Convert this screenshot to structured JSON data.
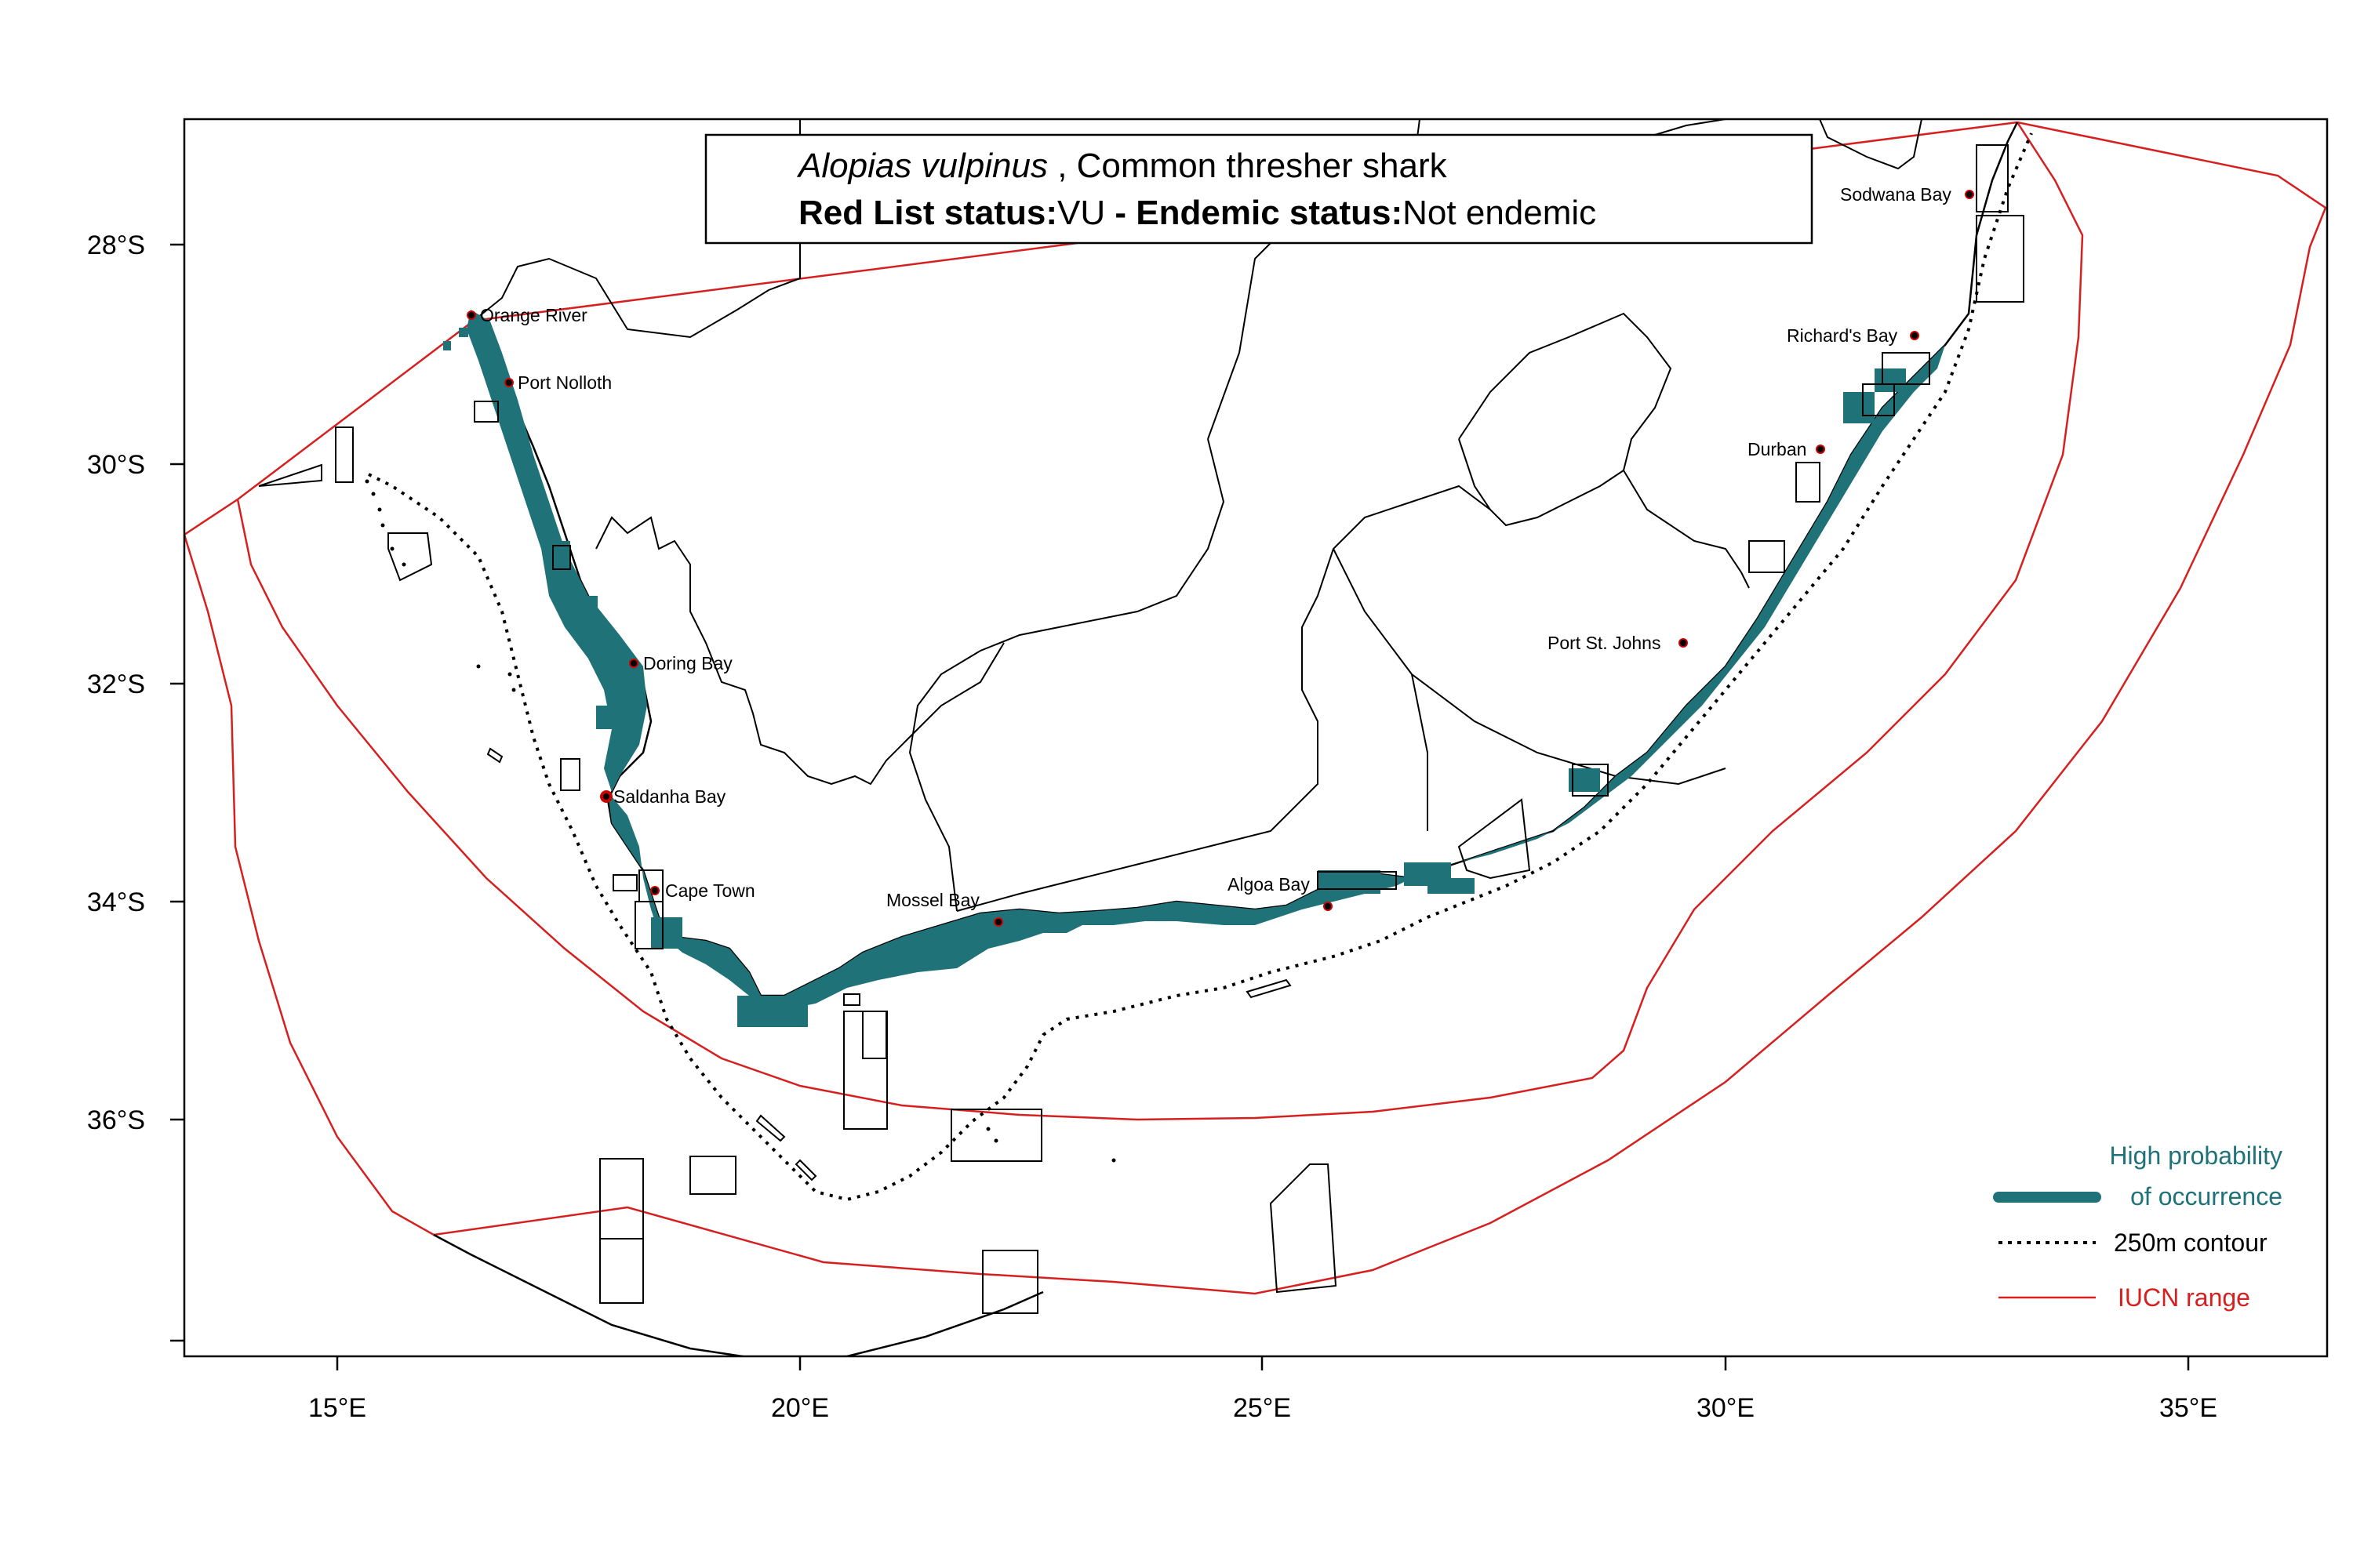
{
  "title": {
    "species": "Alopias vulpinus",
    "separator": " ,",
    "common_name": " Common thresher shark",
    "red_list_label": "Red List status:",
    "red_list_value": "VU",
    "dash": " - ",
    "endemic_label": "Endemic status:",
    "endemic_value": "Not endemic"
  },
  "axes": {
    "x_ticks": [
      "15°E",
      "20°E",
      "25°E",
      "30°E",
      "35°E"
    ],
    "y_ticks": [
      "28°S",
      "30°S",
      "32°S",
      "34°S",
      "36°S"
    ]
  },
  "places": [
    "Orange River",
    "Port Nolloth",
    "Doring Bay",
    "Saldanha Bay",
    "Cape Town",
    "Mossel Bay",
    "Algoa Bay",
    "Port St. Johns",
    "Durban",
    "Richard's Bay",
    "Sodwana Bay"
  ],
  "legend": {
    "occurrence_line1": "High probability",
    "occurrence_line2": "of occurrence",
    "contour": "250m contour",
    "iucn": "IUCN range"
  },
  "colors": {
    "occurrence": "#1f7378",
    "iucn": "#d62020",
    "border": "#000000"
  }
}
